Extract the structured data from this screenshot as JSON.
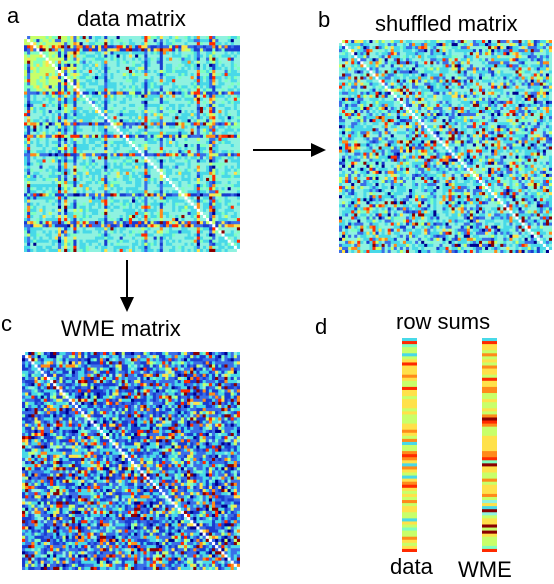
{
  "panels": {
    "a": {
      "letter": "a",
      "title": "data matrix"
    },
    "b": {
      "letter": "b",
      "title": "shuffled matrix"
    },
    "c": {
      "letter": "c",
      "title": "WME matrix"
    },
    "d": {
      "letter": "d",
      "title": "row sums",
      "labels": [
        "data",
        "WME"
      ]
    }
  },
  "colors": {
    "colormap": [
      "#00008f",
      "#1a3cd0",
      "#3b6ee8",
      "#48d9e8",
      "#8ff2e0",
      "#7fffc0",
      "#c8ff6a",
      "#ffe14a",
      "#ff8a1a",
      "#ff2a00",
      "#8a0000"
    ],
    "diagonal": "#ffffff",
    "arrow": "#000000"
  },
  "matrix_size": 70
}
